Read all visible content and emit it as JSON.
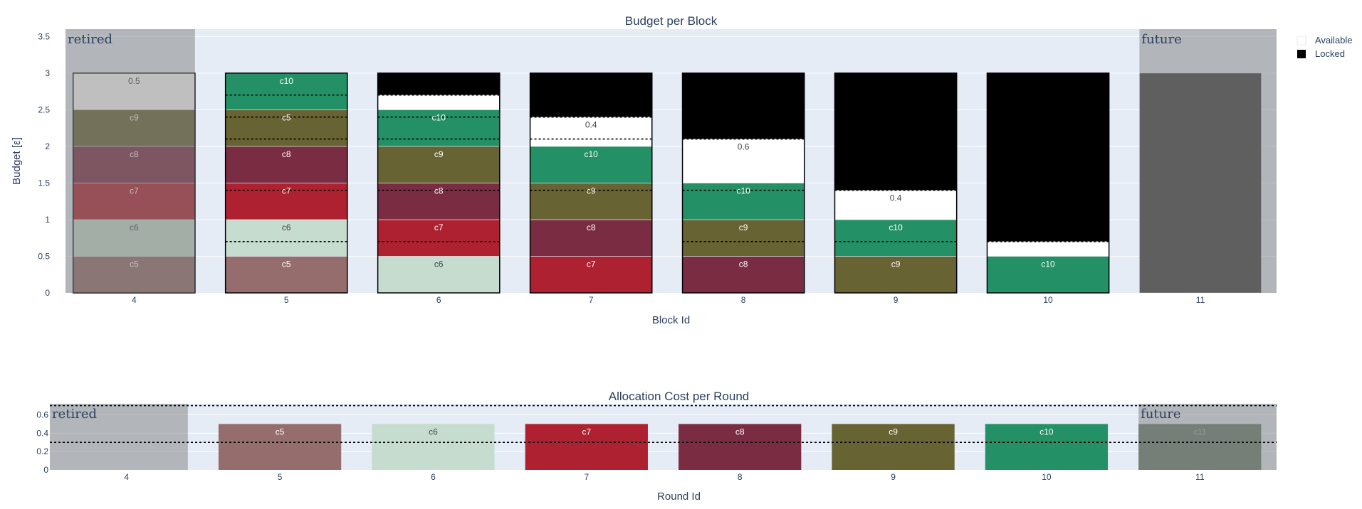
{
  "colors": {
    "plot_bg": "#e5ecf6",
    "grid": "#ffffff",
    "overlay": "#808080",
    "future_fill": "#3f3f3f",
    "c5": "#966d6d",
    "c6": "#c6dccf",
    "c7": "#ae2130",
    "c8": "#7a2d42",
    "c9": "#676333",
    "c10": "#239165",
    "c11": "#6a7e71",
    "available": "#ffffff",
    "locked": "#000000"
  },
  "legend": {
    "items": [
      {
        "label": "Available",
        "color": "#ffffff"
      },
      {
        "label": "Locked",
        "color": "#000000"
      }
    ]
  },
  "chart_data": [
    {
      "type": "bar",
      "title": "Budget per Block",
      "xlabel": "Block Id",
      "ylabel": "Budget [ε]",
      "ylim": [
        0,
        3.6
      ],
      "yticks": [
        0,
        0.5,
        1,
        1.5,
        2,
        2.5,
        3,
        3.5
      ],
      "ytick_labels": [
        "0",
        "0.5",
        "1",
        "1.5",
        "2",
        "2.5",
        "3",
        "3.5"
      ],
      "categories": [
        "4",
        "5",
        "6",
        "7",
        "8",
        "9",
        "10",
        "11"
      ],
      "region_labels": {
        "retired": "retired",
        "future": "future"
      },
      "retired_range": [
        3.55,
        4.4
      ],
      "future_range": [
        10.6,
        11.5
      ],
      "bars": [
        {
          "x": 4,
          "segments": [
            {
              "label": "c5",
              "value": 0.5,
              "color_key": "c5"
            },
            {
              "label": "c6",
              "value": 0.5,
              "color_key": "c6"
            },
            {
              "label": "c7",
              "value": 0.5,
              "color_key": "c7"
            },
            {
              "label": "c8",
              "value": 0.5,
              "color_key": "c8"
            },
            {
              "label": "c9",
              "value": 0.5,
              "color_key": "c9"
            },
            {
              "label": "0.5",
              "value": 0.5,
              "color_key": "available"
            }
          ],
          "dotted": []
        },
        {
          "x": 5,
          "segments": [
            {
              "label": "c5",
              "value": 0.5,
              "color_key": "c5"
            },
            {
              "label": "c6",
              "value": 0.5,
              "color_key": "c6"
            },
            {
              "label": "c7",
              "value": 0.5,
              "color_key": "c7"
            },
            {
              "label": "c8",
              "value": 0.5,
              "color_key": "c8"
            },
            {
              "label": "c5",
              "value": 0.5,
              "color_key": "c9"
            },
            {
              "label": "c10",
              "value": 0.5,
              "color_key": "c10"
            }
          ],
          "dotted": [
            0.7,
            1.4,
            2.1,
            2.4,
            2.7
          ]
        },
        {
          "x": 6,
          "segments": [
            {
              "label": "c6",
              "value": 0.5,
              "color_key": "c6"
            },
            {
              "label": "c7",
              "value": 0.5,
              "color_key": "c7"
            },
            {
              "label": "c8",
              "value": 0.5,
              "color_key": "c8"
            },
            {
              "label": "c9",
              "value": 0.5,
              "color_key": "c9"
            },
            {
              "label": "c10",
              "value": 0.5,
              "color_key": "c10"
            },
            {
              "label": "",
              "value": 0.2,
              "color_key": "available"
            },
            {
              "label": "",
              "value": 0.3,
              "color_key": "locked"
            }
          ],
          "dotted": [
            0.7,
            1.4,
            2.1,
            2.4,
            2.7
          ]
        },
        {
          "x": 7,
          "segments": [
            {
              "label": "c7",
              "value": 0.5,
              "color_key": "c7"
            },
            {
              "label": "c8",
              "value": 0.5,
              "color_key": "c8"
            },
            {
              "label": "c9",
              "value": 0.5,
              "color_key": "c9"
            },
            {
              "label": "c10",
              "value": 0.5,
              "color_key": "c10"
            },
            {
              "label": "0.4",
              "value": 0.4,
              "color_key": "available"
            },
            {
              "label": "",
              "value": 0.6,
              "color_key": "locked"
            }
          ],
          "dotted": [
            1.4,
            2.1,
            2.4
          ]
        },
        {
          "x": 8,
          "segments": [
            {
              "label": "c8",
              "value": 0.5,
              "color_key": "c8"
            },
            {
              "label": "c9",
              "value": 0.5,
              "color_key": "c9"
            },
            {
              "label": "c10",
              "value": 0.5,
              "color_key": "c10"
            },
            {
              "label": "0.6",
              "value": 0.6,
              "color_key": "available"
            },
            {
              "label": "",
              "value": 0.9,
              "color_key": "locked"
            }
          ],
          "dotted": [
            0.7,
            1.4,
            2.1
          ]
        },
        {
          "x": 9,
          "segments": [
            {
              "label": "c9",
              "value": 0.5,
              "color_key": "c9"
            },
            {
              "label": "c10",
              "value": 0.5,
              "color_key": "c10"
            },
            {
              "label": "0.4",
              "value": 0.4,
              "color_key": "available"
            },
            {
              "label": "",
              "value": 1.6,
              "color_key": "locked"
            }
          ],
          "dotted": [
            0.7,
            1.4
          ]
        },
        {
          "x": 10,
          "segments": [
            {
              "label": "c10",
              "value": 0.5,
              "color_key": "c10"
            },
            {
              "label": "",
              "value": 0.2,
              "color_key": "available"
            },
            {
              "label": "",
              "value": 2.3,
              "color_key": "locked"
            }
          ],
          "dotted": [
            0.7
          ]
        },
        {
          "x": 11,
          "segments": [
            {
              "label": "",
              "value": 3.0,
              "color_key": "future_fill"
            }
          ],
          "dotted": []
        }
      ]
    },
    {
      "type": "bar",
      "title": "Allocation Cost per Round",
      "xlabel": "Round Id",
      "ylabel": "",
      "ylim": [
        0,
        0.72
      ],
      "yticks": [
        0,
        0.2,
        0.4,
        0.6
      ],
      "ytick_labels": [
        "0",
        "0.2",
        "0.4",
        "0.6"
      ],
      "categories": [
        "4",
        "5",
        "6",
        "7",
        "8",
        "9",
        "10",
        "11"
      ],
      "region_labels": {
        "retired": "retired",
        "future": "future"
      },
      "retired_range": [
        3.5,
        4.4
      ],
      "future_range": [
        10.6,
        11.5
      ],
      "hlines": [
        0.3,
        0.7
      ],
      "bars": [
        {
          "x": 5,
          "value": 0.5,
          "label": "c5",
          "color_key": "c5"
        },
        {
          "x": 6,
          "value": 0.5,
          "label": "c6",
          "color_key": "c6"
        },
        {
          "x": 7,
          "value": 0.5,
          "label": "c7",
          "color_key": "c7"
        },
        {
          "x": 8,
          "value": 0.5,
          "label": "c8",
          "color_key": "c8"
        },
        {
          "x": 9,
          "value": 0.5,
          "label": "c9",
          "color_key": "c9"
        },
        {
          "x": 10,
          "value": 0.5,
          "label": "c10",
          "color_key": "c10"
        },
        {
          "x": 11,
          "value": 0.5,
          "label": "c11",
          "color_key": "c11"
        }
      ]
    }
  ]
}
